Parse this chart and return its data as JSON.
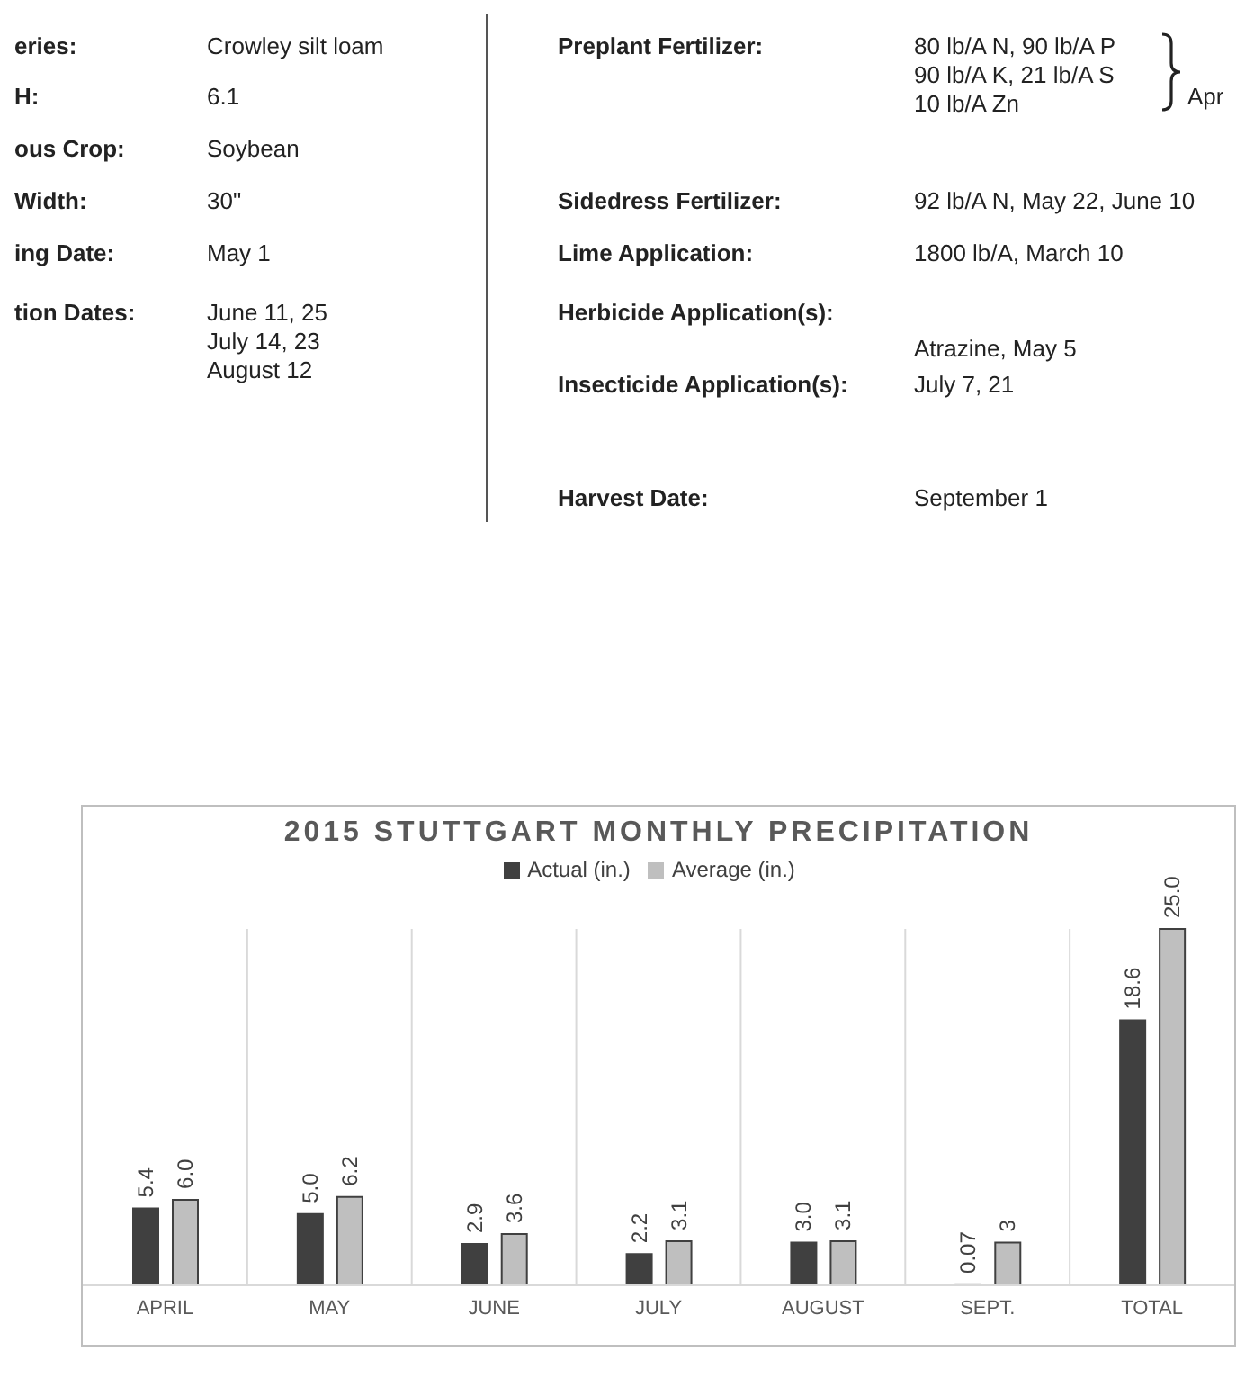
{
  "chart_data": [
    {
      "type": "other",
      "annotations": [
        "eries:",
        "Crowley silt loam",
        "H:",
        "6.1",
        "ous Crop:",
        "Soybean",
        "Width:",
        "30\"",
        "ing Date:",
        "May 1",
        "tion Dates:",
        "June 11, 25\nJuly 14, 23\nAugust 12",
        "Preplant Fertilizer:",
        "80 lb/A N, 90 lb/A P\n90 lb/A K, 21 lb/A S\n10 lb/A Zn",
        "Apr",
        "Sidedress Fertilizer:",
        "92 lb/A N, May 22, June 10",
        "Lime Application:",
        "1800 lb/A, March 10",
        "Herbicide Application(s):",
        "Atrazine, May 5",
        "Insecticide Application(s):",
        "July 7, 21",
        "Harvest Date:",
        "September 1"
      ]
    },
    {
      "type": "bar",
      "title": "2015 STUTTGART MONTHLY PRECIPITATION",
      "categories": [
        "APRIL",
        "MAY",
        "JUNE",
        "JULY",
        "AUGUST",
        "SEPT.",
        "TOTAL"
      ],
      "legend": "top",
      "grid": "x",
      "series": [
        {
          "name": "Actual (in.)",
          "color": "#404040",
          "values": [
            5.4,
            5.0,
            2.9,
            2.2,
            3.0,
            0.07,
            18.6
          ],
          "value_labels": [
            "5.4",
            "5.0",
            "2.9",
            "2.2",
            "3.0",
            "0.07",
            "18.6"
          ]
        },
        {
          "name": "Average (in.)",
          "color": "#bfbfbf",
          "values": [
            6.0,
            6.2,
            3.6,
            3.1,
            3.1,
            3,
            25.0
          ],
          "value_labels": [
            "6.0",
            "6.2",
            "3.6",
            "3.1",
            "3.1",
            "3",
            "25.0"
          ]
        }
      ]
    }
  ]
}
